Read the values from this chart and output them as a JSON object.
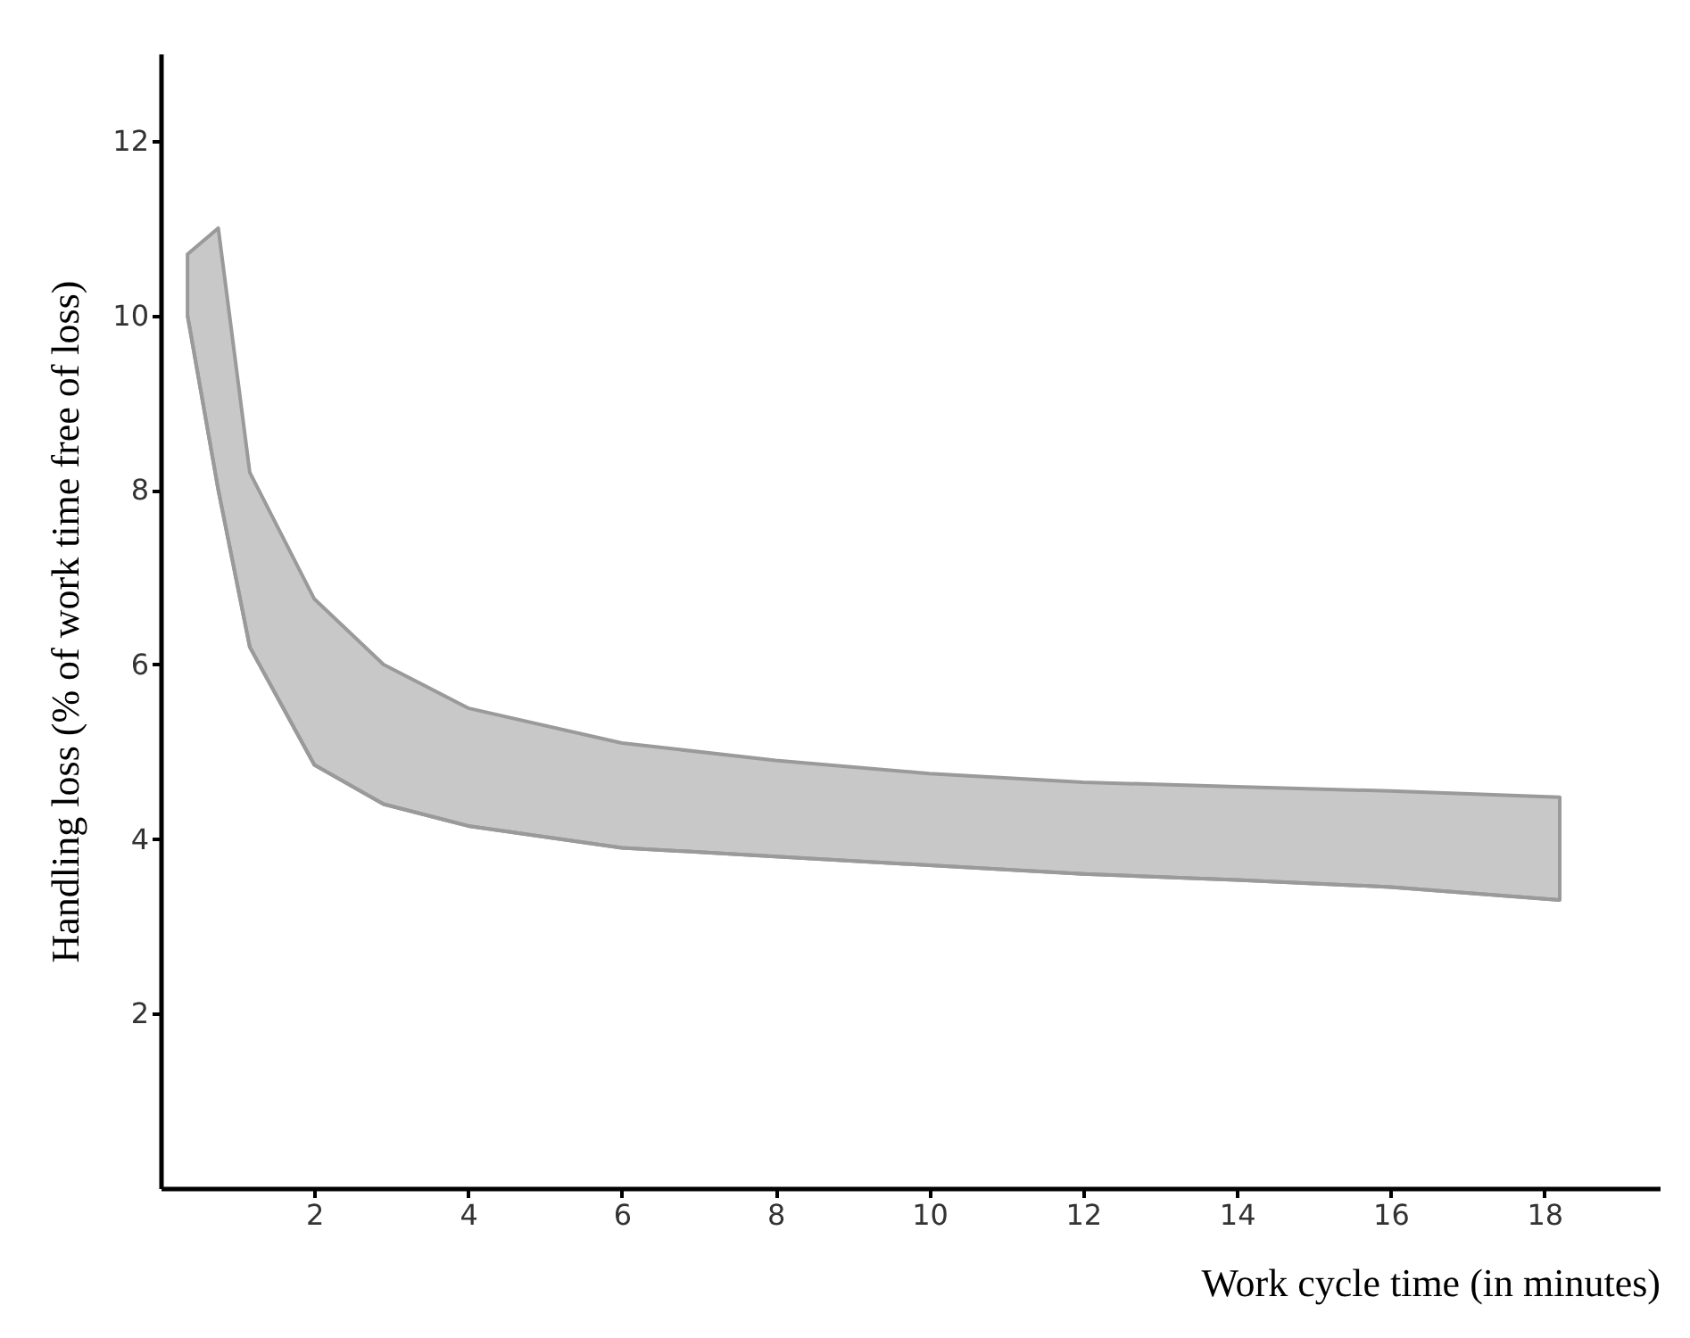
{
  "chart_data": {
    "type": "line",
    "xlabel": "Work cycle time (in minutes)",
    "ylabel": "Handling loss (% of work time free of loss)",
    "series": [
      {
        "color": "#9a9a9a",
        "x": [
          0.35,
          0.75,
          1.16,
          2,
          2.9,
          4,
          6,
          8,
          10,
          12,
          14,
          16,
          18.2
        ],
        "values": [
          10.0,
          8.0,
          6.2,
          4.85,
          4.4,
          4.15,
          3.9,
          3.8,
          3.7,
          3.6,
          3.53,
          3.45,
          3.3
        ],
        "lower": [
          10.0,
          8.0,
          6.2,
          4.85,
          4.4,
          4.15,
          3.9,
          3.8,
          3.7,
          3.6,
          3.53,
          3.45,
          3.3
        ],
        "upper": [
          10.7,
          11.0,
          8.2,
          6.75,
          6.0,
          5.5,
          5.1,
          4.9,
          4.75,
          4.65,
          4.6,
          4.55,
          4.48
        ]
      }
    ],
    "xlim": [
      0,
      19.5
    ],
    "ylim": [
      0,
      13
    ],
    "xticks": [
      2,
      4,
      6,
      8,
      10,
      12,
      14,
      16,
      18
    ],
    "yticks": [
      2,
      4,
      6,
      8,
      10,
      12
    ],
    "grid": false
  }
}
